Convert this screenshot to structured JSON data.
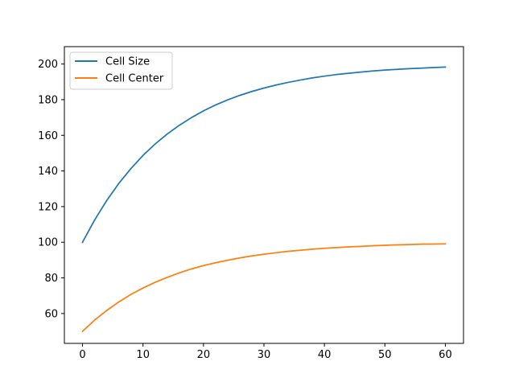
{
  "chart_data": {
    "type": "line",
    "title": "",
    "xlabel": "",
    "ylabel": "",
    "xlim": [
      -3,
      63
    ],
    "ylim": [
      43.25,
      209.75
    ],
    "x_ticks": [
      0,
      10,
      20,
      30,
      40,
      50,
      60
    ],
    "y_ticks": [
      60,
      80,
      100,
      120,
      140,
      160,
      180,
      200
    ],
    "x_tick_labels": [
      "0",
      "10",
      "20",
      "30",
      "40",
      "50",
      "60"
    ],
    "y_tick_labels": [
      "60",
      "80",
      "100",
      "120",
      "140",
      "160",
      "180",
      "200"
    ],
    "grid": false,
    "legend_position": "top-left",
    "x": [
      0,
      2,
      4,
      6,
      8,
      10,
      12,
      14,
      16,
      18,
      20,
      22,
      24,
      26,
      28,
      30,
      32,
      34,
      36,
      38,
      40,
      42,
      44,
      46,
      48,
      50,
      52,
      54,
      56,
      58,
      60
    ],
    "series": [
      {
        "name": "Cell Size",
        "color": "#1f77b4",
        "values": [
          100.0,
          112.5,
          123.4,
          133.0,
          141.3,
          148.7,
          155.1,
          160.7,
          165.6,
          169.9,
          173.7,
          177.0,
          179.9,
          182.4,
          184.6,
          186.5,
          188.2,
          189.7,
          191.0,
          192.2,
          193.2,
          194.1,
          194.8,
          195.5,
          196.1,
          196.6,
          197.0,
          197.4,
          197.7,
          198.0,
          198.3
        ]
      },
      {
        "name": "Cell Center",
        "color": "#ff7f0e",
        "values": [
          50.0,
          56.3,
          61.7,
          66.5,
          70.7,
          74.3,
          77.5,
          80.3,
          82.8,
          85.0,
          86.9,
          88.5,
          89.9,
          91.2,
          92.3,
          93.3,
          94.1,
          94.9,
          95.5,
          96.1,
          96.6,
          97.0,
          97.4,
          97.7,
          98.0,
          98.3,
          98.5,
          98.7,
          98.9,
          99.0,
          99.1
        ]
      }
    ]
  }
}
